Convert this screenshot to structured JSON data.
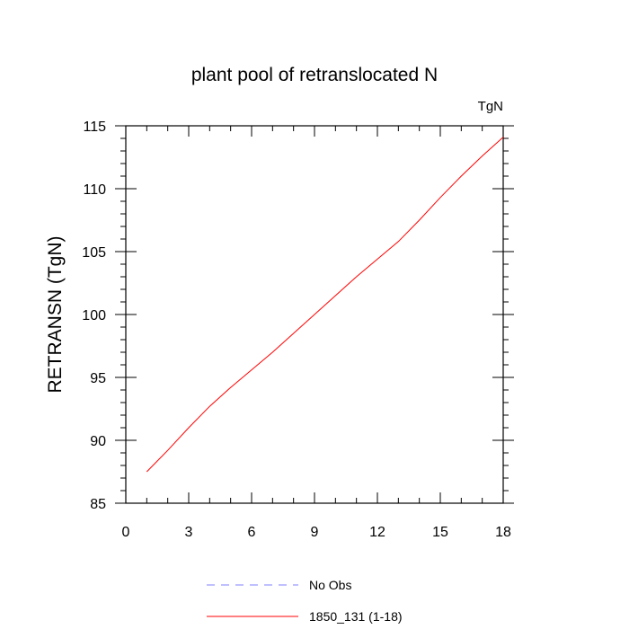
{
  "chart_data": {
    "type": "line",
    "title": "plant pool of retranslocated N",
    "unit_label": "TgN",
    "ylabel": "RETRANSN  (TgN)",
    "xlabel": "",
    "xlim": [
      0,
      18
    ],
    "ylim": [
      85,
      115
    ],
    "xticks": [
      0,
      3,
      6,
      9,
      12,
      15,
      18
    ],
    "yticks": [
      85,
      90,
      95,
      100,
      105,
      110,
      115
    ],
    "grid": false,
    "legend_position": "bottom",
    "series": [
      {
        "name": "No Obs",
        "color": "#8080ff",
        "dash": "dashed",
        "x": [],
        "y": []
      },
      {
        "name": "1850_131 (1-18)",
        "color": "#ff0000",
        "dash": "solid",
        "x": [
          1,
          2,
          3,
          4,
          5,
          6,
          7,
          8,
          9,
          10,
          11,
          12,
          13,
          14,
          15,
          16,
          17,
          18
        ],
        "y": [
          87.5,
          89.2,
          91.0,
          92.7,
          94.2,
          95.6,
          97.0,
          98.5,
          100.0,
          101.5,
          103.0,
          104.4,
          105.8,
          107.5,
          109.3,
          111.0,
          112.6,
          114.1
        ]
      }
    ]
  }
}
